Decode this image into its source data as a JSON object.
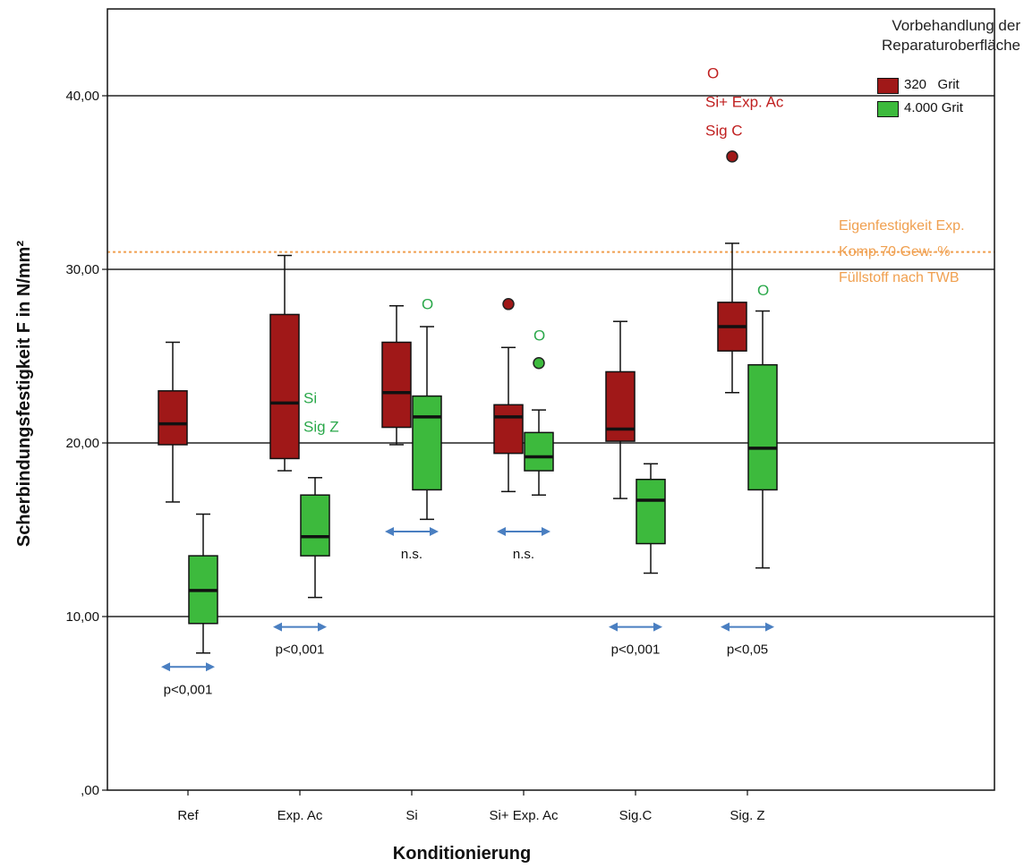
{
  "chart_data": {
    "type": "boxplot",
    "title": "",
    "xlabel": "Konditionierung",
    "ylabel": "Scherbindungsfestigkeit F in N/mm²",
    "ylim": [
      0,
      45
    ],
    "yticks": [
      0,
      10,
      20,
      30,
      40
    ],
    "ytick_labels": [
      ",00",
      "10,00",
      "20,00",
      "30,00",
      "40,00"
    ],
    "gridlines_y": [
      10,
      20,
      30,
      40
    ],
    "categories": [
      "Ref",
      "Exp. Ac",
      "Si",
      "Si+ Exp. Ac",
      "Sig.C",
      "Sig. Z"
    ],
    "legend": {
      "title_line1": "Vorbehandlung der",
      "title_line2": "Reparaturoberfläche",
      "placement": "top-right"
    },
    "series": [
      {
        "name": "320   Grit",
        "color": "#a01818",
        "boxes": [
          {
            "category": "Ref",
            "min": 16.6,
            "q1": 19.9,
            "median": 21.1,
            "q3": 23.0,
            "max": 25.8,
            "outliers": []
          },
          {
            "category": "Exp. Ac",
            "min": 18.4,
            "q1": 19.1,
            "median": 22.3,
            "q3": 27.4,
            "max": 30.8,
            "outliers": []
          },
          {
            "category": "Si",
            "min": 19.9,
            "q1": 20.9,
            "median": 22.9,
            "q3": 25.8,
            "max": 27.9,
            "outliers": []
          },
          {
            "category": "Si+ Exp. Ac",
            "min": 17.2,
            "q1": 19.4,
            "median": 21.5,
            "q3": 22.2,
            "max": 25.5,
            "outliers": [
              28.0
            ]
          },
          {
            "category": "Sig.C",
            "min": 16.8,
            "q1": 20.1,
            "median": 20.8,
            "q3": 24.1,
            "max": 27.0,
            "outliers": []
          },
          {
            "category": "Sig. Z",
            "min": 22.9,
            "q1": 25.3,
            "median": 26.7,
            "q3": 28.1,
            "max": 31.5,
            "outliers": [
              36.5
            ]
          }
        ]
      },
      {
        "name": "4.000 Grit",
        "color": "#3dba3d",
        "boxes": [
          {
            "category": "Ref",
            "min": 7.9,
            "q1": 9.6,
            "median": 11.5,
            "q3": 13.5,
            "max": 15.9,
            "outliers": []
          },
          {
            "category": "Exp. Ac",
            "min": 11.1,
            "q1": 13.5,
            "median": 14.6,
            "q3": 17.0,
            "max": 18.0,
            "outliers": []
          },
          {
            "category": "Si",
            "min": 15.6,
            "q1": 17.3,
            "median": 21.5,
            "q3": 22.7,
            "max": 26.7,
            "outliers": []
          },
          {
            "category": "Si+ Exp. Ac",
            "min": 17.0,
            "q1": 18.4,
            "median": 19.2,
            "q3": 20.6,
            "max": 21.9,
            "outliers": [
              24.6
            ]
          },
          {
            "category": "Sig.C",
            "min": 12.5,
            "q1": 14.2,
            "median": 16.7,
            "q3": 17.9,
            "max": 18.8,
            "outliers": []
          },
          {
            "category": "Sig. Z",
            "min": 12.8,
            "q1": 17.3,
            "median": 19.7,
            "q3": 24.5,
            "max": 27.6,
            "outliers": []
          }
        ]
      }
    ],
    "reference_line": {
      "value": 31,
      "color": "#f0a050",
      "style": "dotted",
      "label": [
        "Eigenfestigkeit Exp.",
        "Komp.70 Gew.-%",
        "Füllstoff nach TWB"
      ]
    },
    "comparisons": [
      {
        "category": "Ref",
        "label": "p<0,001",
        "value": 7.1
      },
      {
        "category": "Exp. Ac",
        "label": "p<0,001",
        "value": 9.4
      },
      {
        "category": "Si",
        "label": "n.s.",
        "value": 14.9
      },
      {
        "category": "Si+ Exp. Ac",
        "label": "n.s.",
        "value": 14.9
      },
      {
        "category": "Sig.C",
        "label": "p<0,001",
        "value": 9.4
      },
      {
        "category": "Sig. Z",
        "label": "p<0,05",
        "value": 9.4
      }
    ],
    "annotations": [
      {
        "category": "Exp. Ac",
        "lines": [
          "Si",
          "Sig Z"
        ],
        "color": "#2aa84a",
        "value": 22.3
      },
      {
        "category": "Si",
        "lines": [
          "O"
        ],
        "color": "#2aa84a",
        "value": 27.7
      },
      {
        "category": "Si+ Exp. Ac",
        "lines": [
          "O"
        ],
        "color": "#2aa84a",
        "value": 25.9
      },
      {
        "category": "Sig. Z",
        "lines": [
          "O"
        ],
        "color": "#2aa84a",
        "value": 28.5
      },
      {
        "category": "Sig. Z",
        "lines": [
          "O",
          "Si+ Exp. Ac",
          "Sig C"
        ],
        "color": "#c02020",
        "value": 41.0
      }
    ]
  }
}
